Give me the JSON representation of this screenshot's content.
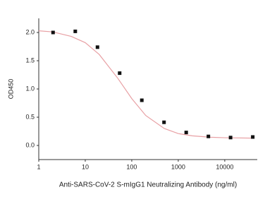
{
  "chart_data": {
    "type": "scatter",
    "xlabel": "Anti-SARS-CoV-2 S-mIgG1 Neutralizing Antibody (ng/ml)",
    "ylabel": "OD450",
    "xscale": "log",
    "xlim": [
      1,
      50000
    ],
    "xticks": [
      1,
      10,
      100,
      1000,
      10000
    ],
    "ylim": [
      -0.25,
      2.25
    ],
    "yticks": [
      {
        "value": 0,
        "label": "0.0"
      },
      0.5,
      {
        "value": 1,
        "label": "1.0"
      },
      1.5,
      {
        "value": 2,
        "label": "2.0"
      }
    ],
    "series": [
      {
        "type": "scatter",
        "color": "#111111",
        "x": [
          2.03,
          6.1,
          18.3,
          54.9,
          164.6,
          494,
          1482,
          4444,
          13333,
          40000
        ],
        "values": [
          2.0,
          2.02,
          1.74,
          1.28,
          0.8,
          0.41,
          0.23,
          0.16,
          0.14,
          0.15
        ]
      },
      {
        "type": "line",
        "color": "#e8a0a4",
        "x": [
          1,
          2,
          5,
          10,
          20,
          50,
          100,
          200,
          500,
          1000,
          2000,
          5000,
          10000,
          40000
        ],
        "values": [
          2.03,
          2.01,
          1.93,
          1.82,
          1.61,
          1.19,
          0.83,
          0.53,
          0.3,
          0.21,
          0.17,
          0.145,
          0.137,
          0.13
        ]
      }
    ]
  }
}
